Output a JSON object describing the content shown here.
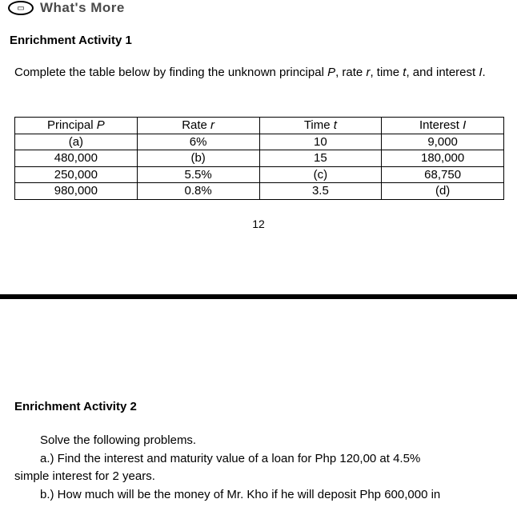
{
  "header": {
    "title": "What's More"
  },
  "activity1": {
    "heading": "Enrichment Activity 1",
    "instruction_prefix": "Complete the table below by finding the unknown principal ",
    "var_P": "P",
    "mid1": ", rate ",
    "var_r": "r",
    "mid2": ", time ",
    "var_t": "t",
    "mid3": ", and interest ",
    "var_I": "I",
    "suffix": "."
  },
  "table": {
    "headers": {
      "p_label": "Principal ",
      "p_var": "P",
      "r_label": "Rate ",
      "r_var": "r",
      "t_label": "Time ",
      "t_var": "t",
      "i_label": "Interest ",
      "i_var": "I"
    },
    "rows": [
      {
        "p": "(a)",
        "r": "6%",
        "t": "10",
        "i": "9,000"
      },
      {
        "p": "480,000",
        "r": "(b)",
        "t": "15",
        "i": "180,000"
      },
      {
        "p": "250,000",
        "r": "5.5%",
        "t": "(c)",
        "i": "68,750"
      },
      {
        "p": "980,000",
        "r": "0.8%",
        "t": "3.5",
        "i": "(d)"
      }
    ]
  },
  "page_number": "12",
  "activity2": {
    "heading": "Enrichment Activity 2",
    "lead": "Solve the following problems.",
    "item_a": "a.)  Find the interest and maturity value of a loan for Php 120,00 at 4.5%",
    "item_a_cont": "simple interest for 2 years.",
    "item_b": "b.)   How much will be the money of Mr. Kho if he will deposit Php 600,000 in"
  }
}
